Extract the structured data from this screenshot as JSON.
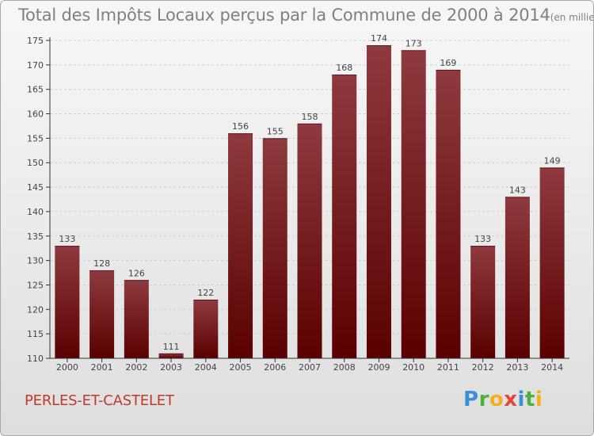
{
  "title": {
    "main": "Total des Impôts Locaux perçus par la Commune de 2000 à 2014",
    "unit": "(en milliers d'€)"
  },
  "commune": "PERLES-ET-CASTELET",
  "logo": {
    "letters": [
      "P",
      "r",
      "o",
      "x",
      "i",
      "t",
      "i"
    ]
  },
  "colors": {
    "bar_top": "#8e3a3e",
    "bar_bottom": "#5a0000",
    "grid": "#cccccc",
    "axis": "#333333",
    "commune_text": "#c0392b"
  },
  "chart_data": {
    "type": "bar",
    "title": "Total des Impôts Locaux perçus par la Commune de 2000 à 2014",
    "xlabel": "",
    "ylabel": "",
    "categories": [
      "2000",
      "2001",
      "2002",
      "2003",
      "2004",
      "2005",
      "2006",
      "2007",
      "2008",
      "2009",
      "2010",
      "2011",
      "2012",
      "2013",
      "2014"
    ],
    "values": [
      133,
      128,
      126,
      111,
      122,
      156,
      155,
      158,
      168,
      174,
      173,
      169,
      133,
      143,
      149
    ],
    "ylim": [
      110,
      175
    ],
    "yticks": [
      110,
      115,
      120,
      125,
      130,
      135,
      140,
      145,
      150,
      155,
      160,
      165,
      170,
      175
    ],
    "grid": true
  }
}
